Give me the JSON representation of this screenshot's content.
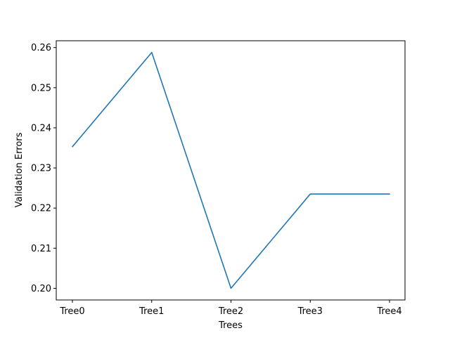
{
  "chart_data": {
    "type": "line",
    "categories": [
      "Tree0",
      "Tree1",
      "Tree2",
      "Tree3",
      "Tree4"
    ],
    "series": [
      {
        "values": [
          0.2353,
          0.2588,
          0.2,
          0.2235,
          0.2235
        ],
        "color": "#1f77b4"
      }
    ],
    "title": "",
    "xlabel": "Trees",
    "ylabel": "Validation Errors",
    "ylim": [
      0.1971,
      0.2617
    ],
    "yticks": [
      0.2,
      0.21,
      0.22,
      0.23,
      0.24,
      0.25,
      0.26
    ],
    "ytick_labels": [
      "0.20",
      "0.21",
      "0.22",
      "0.23",
      "0.24",
      "0.25",
      "0.26"
    ],
    "grid": false,
    "legend": "none"
  }
}
